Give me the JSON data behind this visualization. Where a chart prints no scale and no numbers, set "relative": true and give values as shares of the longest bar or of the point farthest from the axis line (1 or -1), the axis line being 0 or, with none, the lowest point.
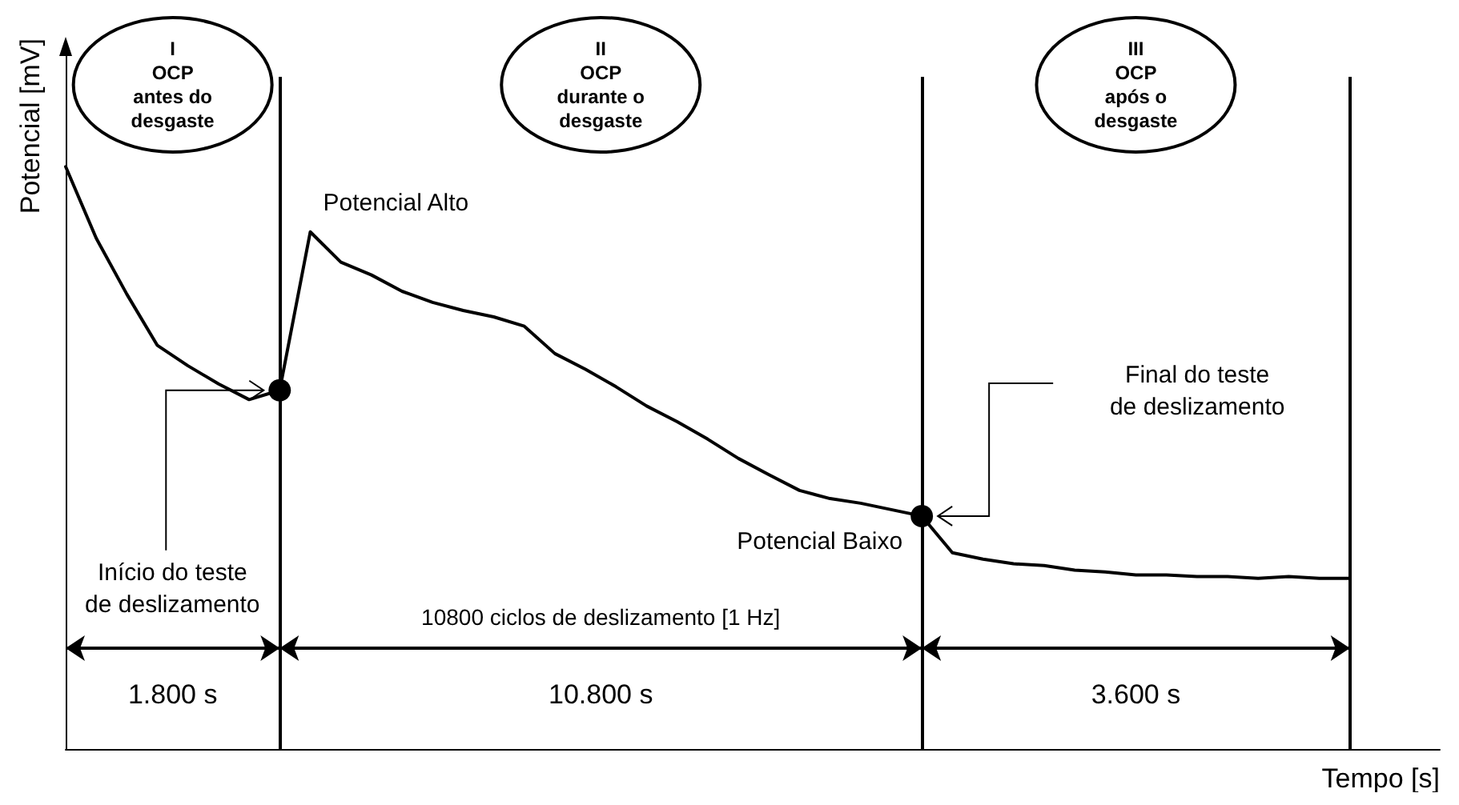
{
  "chart_data": {
    "type": "line",
    "relative": true,
    "xlabel": "Tempo [s]",
    "ylabel": "Potencial [mV]",
    "line_style": "solid",
    "grid": "x",
    "categories": [
      null,
      null,
      null,
      null,
      null,
      null,
      null,
      null,
      null,
      null,
      null,
      null,
      null,
      null,
      null,
      null,
      null,
      null,
      null,
      null,
      null,
      null,
      null,
      null,
      null,
      null,
      null,
      null,
      null,
      null,
      null,
      null,
      null,
      null,
      null,
      null,
      null,
      null,
      null,
      null,
      null,
      null,
      null
    ],
    "series": [
      {
        "color": "#000000",
        "marker": "none",
        "values": [
          1,
          0.877,
          0.781,
          0.693,
          0.658,
          0.627,
          0.6,
          0.616,
          0.888,
          0.836,
          0.814,
          0.786,
          0.767,
          0.753,
          0.742,
          0.726,
          0.679,
          0.652,
          0.622,
          0.589,
          0.562,
          0.532,
          0.499,
          0.471,
          0.444,
          0.43,
          0.422,
          0.411,
          0.4,
          0.337,
          0.326,
          0.318,
          0.315,
          0.307,
          0.304,
          0.299,
          0.299,
          0.296,
          0.296,
          0.293,
          0.296,
          0.293,
          0.293
        ]
      }
    ],
    "annotations": [
      "I\nOCP\nantes do\ndesgaste",
      "II\nOCP\ndurante o\ndesgaste",
      "III\nOCP\napós o\ndesgaste",
      "1.800 s",
      "10.800 s",
      "3.600 s",
      "10800 ciclos de deslizamento [1 Hz]",
      "Potencial Alto",
      "Início do teste\nde deslizamento",
      "Potencial Baixo",
      "Final do teste\nde deslizamento"
    ]
  }
}
